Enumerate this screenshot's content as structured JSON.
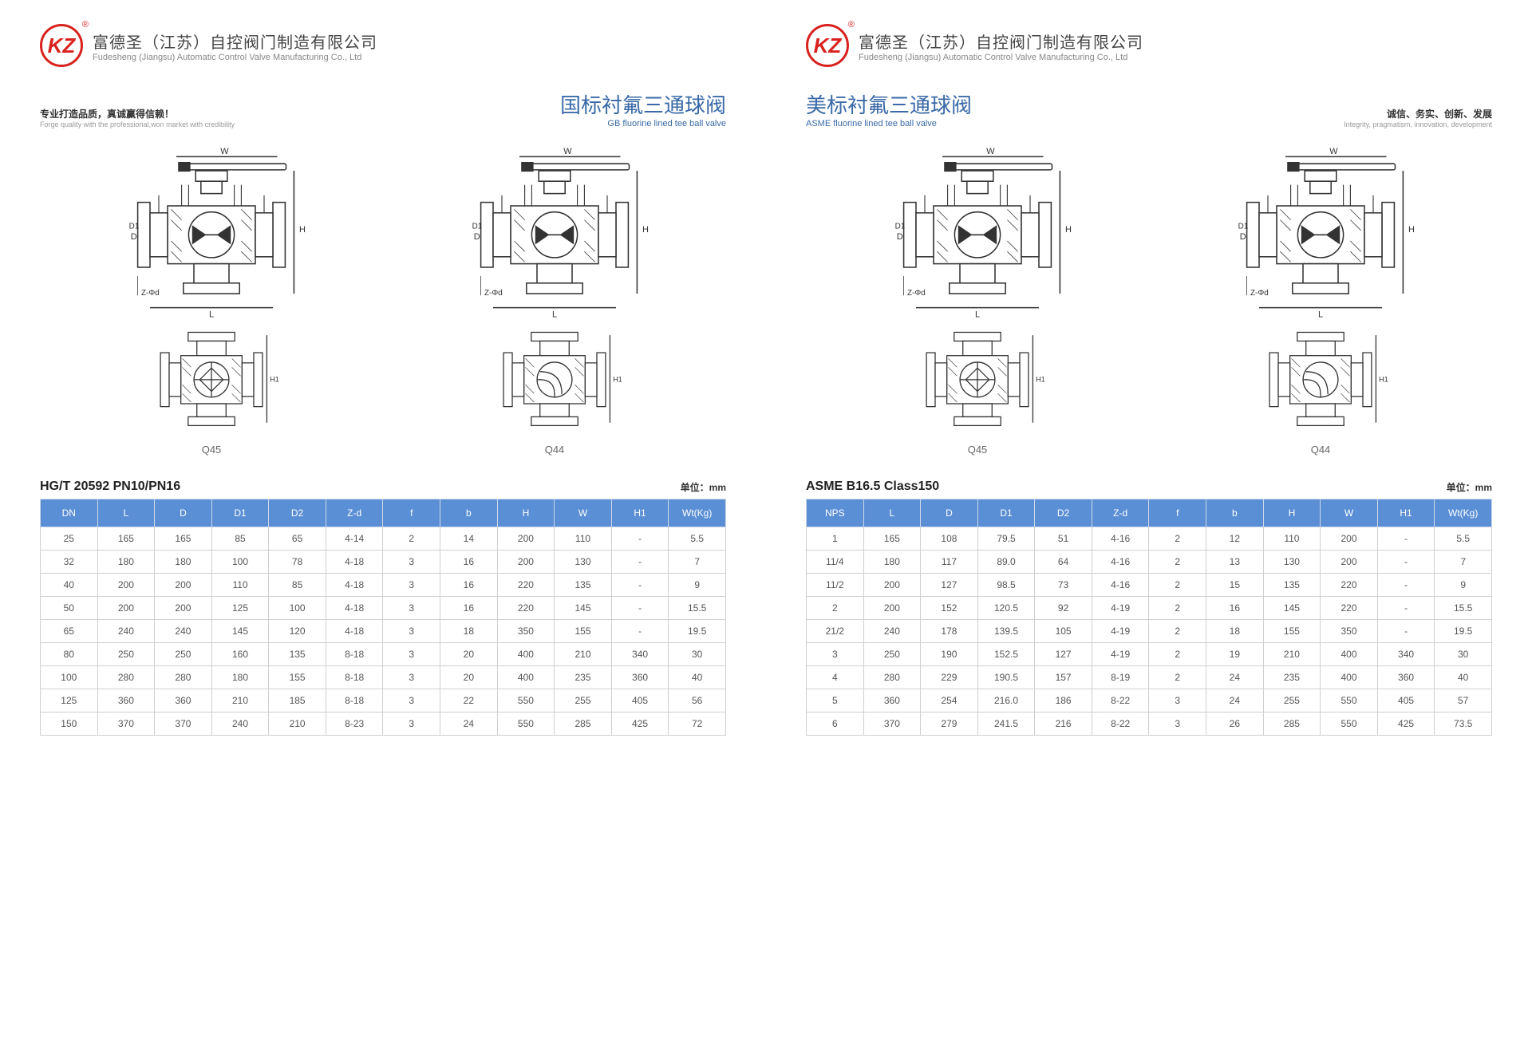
{
  "logo_text": "KZ",
  "company": {
    "cn": "富德圣（江苏）自控阀门制造有限公司",
    "en": "Fudesheng (Jiangsu) Automatic Control Valve Manufacturing Co., Ltd"
  },
  "left": {
    "tagline_cn": "专业打造品质，真诚赢得信赖！",
    "tagline_en": "Forge quality with the professional,won market with credibility",
    "title_cn": "国标衬氟三通球阀",
    "title_en": "GB fluorine lined tee ball valve",
    "drawing_labels": {
      "bl": "Q45",
      "br": "Q44"
    },
    "table": {
      "title": "HG/T 20592 PN10/PN16",
      "unit": "单位：mm",
      "columns": [
        "DN",
        "L",
        "D",
        "D1",
        "D2",
        "Z-d",
        "f",
        "b",
        "H",
        "W",
        "H1",
        "Wt(Kg)"
      ],
      "header_bg": "#5a8fd6",
      "rows": [
        [
          "25",
          "165",
          "165",
          "85",
          "65",
          "4-14",
          "2",
          "14",
          "200",
          "110",
          "-",
          "5.5"
        ],
        [
          "32",
          "180",
          "180",
          "100",
          "78",
          "4-18",
          "3",
          "16",
          "200",
          "130",
          "-",
          "7"
        ],
        [
          "40",
          "200",
          "200",
          "110",
          "85",
          "4-18",
          "3",
          "16",
          "220",
          "135",
          "-",
          "9"
        ],
        [
          "50",
          "200",
          "200",
          "125",
          "100",
          "4-18",
          "3",
          "16",
          "220",
          "145",
          "-",
          "15.5"
        ],
        [
          "65",
          "240",
          "240",
          "145",
          "120",
          "4-18",
          "3",
          "18",
          "350",
          "155",
          "-",
          "19.5"
        ],
        [
          "80",
          "250",
          "250",
          "160",
          "135",
          "8-18",
          "3",
          "20",
          "400",
          "210",
          "340",
          "30"
        ],
        [
          "100",
          "280",
          "280",
          "180",
          "155",
          "8-18",
          "3",
          "20",
          "400",
          "235",
          "360",
          "40"
        ],
        [
          "125",
          "360",
          "360",
          "210",
          "185",
          "8-18",
          "3",
          "22",
          "550",
          "255",
          "405",
          "56"
        ],
        [
          "150",
          "370",
          "370",
          "240",
          "210",
          "8-23",
          "3",
          "24",
          "550",
          "285",
          "425",
          "72"
        ]
      ]
    }
  },
  "right": {
    "tagline_cn": "诚信、务实、创新、发展",
    "tagline_en": "Integrity, pragmatism, innovation, development",
    "title_cn": "美标衬氟三通球阀",
    "title_en": "ASME fluorine lined tee ball valve",
    "drawing_labels": {
      "bl": "Q45",
      "br": "Q44"
    },
    "table": {
      "title": "ASME B16.5 Class150",
      "unit": "单位：mm",
      "columns": [
        "NPS",
        "L",
        "D",
        "D1",
        "D2",
        "Z-d",
        "f",
        "b",
        "H",
        "W",
        "H1",
        "Wt(Kg)"
      ],
      "header_bg": "#5a8fd6",
      "rows": [
        [
          "1",
          "165",
          "108",
          "79.5",
          "51",
          "4-16",
          "2",
          "12",
          "110",
          "200",
          "-",
          "5.5"
        ],
        [
          "11/4",
          "180",
          "117",
          "89.0",
          "64",
          "4-16",
          "2",
          "13",
          "130",
          "200",
          "-",
          "7"
        ],
        [
          "11/2",
          "200",
          "127",
          "98.5",
          "73",
          "4-16",
          "2",
          "15",
          "135",
          "220",
          "-",
          "9"
        ],
        [
          "2",
          "200",
          "152",
          "120.5",
          "92",
          "4-19",
          "2",
          "16",
          "145",
          "220",
          "-",
          "15.5"
        ],
        [
          "21/2",
          "240",
          "178",
          "139.5",
          "105",
          "4-19",
          "2",
          "18",
          "155",
          "350",
          "-",
          "19.5"
        ],
        [
          "3",
          "250",
          "190",
          "152.5",
          "127",
          "4-19",
          "2",
          "19",
          "210",
          "400",
          "340",
          "30"
        ],
        [
          "4",
          "280",
          "229",
          "190.5",
          "157",
          "8-19",
          "2",
          "24",
          "235",
          "400",
          "360",
          "40"
        ],
        [
          "5",
          "360",
          "254",
          "216.0",
          "186",
          "8-22",
          "3",
          "24",
          "255",
          "550",
          "405",
          "57"
        ],
        [
          "6",
          "370",
          "279",
          "241.5",
          "216",
          "8-22",
          "3",
          "26",
          "285",
          "550",
          "425",
          "73.5"
        ]
      ]
    }
  },
  "style": {
    "brand_red": "#d9221e",
    "title_blue": "#3a6aa8",
    "table_header_bg": "#5a8fd6",
    "table_border": "#d0d0d0",
    "font_sizes": {
      "company_cn": 20,
      "company_en": 11,
      "title_cn": 26,
      "title_en": 11,
      "table_title": 16,
      "cell": 12
    }
  }
}
